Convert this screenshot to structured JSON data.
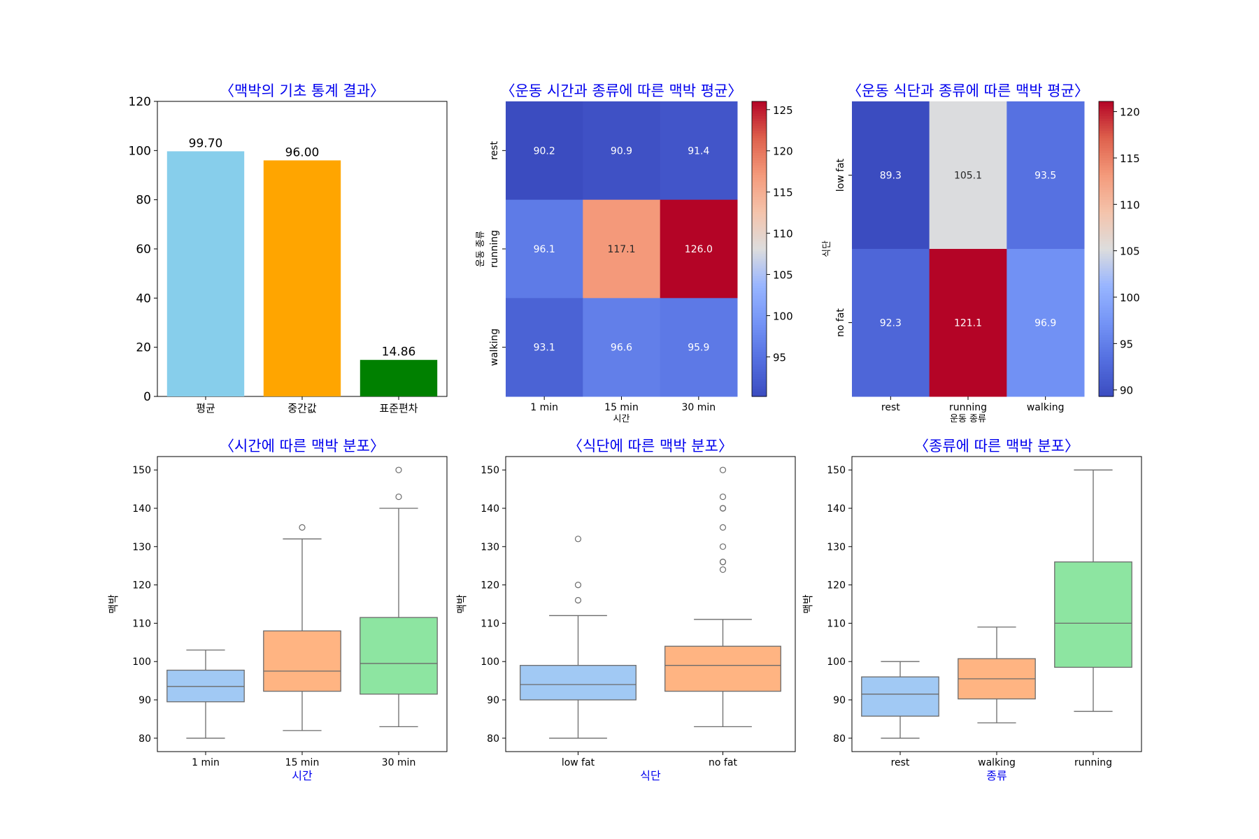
{
  "chart_data": [
    {
      "id": "bar-stats",
      "type": "bar",
      "title": "〈맥박의 기초 통계 결과〉",
      "categories": [
        "평균",
        "중간값",
        "표준편차"
      ],
      "values": [
        99.7,
        96.0,
        14.86
      ],
      "value_labels": [
        "99.70",
        "96.00",
        "14.86"
      ],
      "colors": [
        "#87ceeb",
        "#ffa500",
        "#008000"
      ],
      "ylim": [
        0,
        120
      ],
      "yticks": [
        0,
        20,
        40,
        60,
        80,
        100,
        120
      ],
      "xlabel": "",
      "ylabel": ""
    },
    {
      "id": "heatmap-time-kind",
      "type": "heatmap",
      "title": "〈운동 시간과 종류에 따른 맥박 평균〉",
      "xlabel": "시간",
      "ylabel": "운동 종류",
      "x": [
        "1 min",
        "15 min",
        "30 min"
      ],
      "y": [
        "rest",
        "running",
        "walking"
      ],
      "values": [
        [
          90.2,
          90.9,
          91.4
        ],
        [
          96.1,
          117.1,
          126.0
        ],
        [
          93.1,
          96.6,
          95.9
        ]
      ],
      "value_labels": [
        [
          "90.2",
          "90.9",
          "91.4"
        ],
        [
          "96.1",
          "117.1",
          "126.0"
        ],
        [
          "93.1",
          "96.6",
          "95.9"
        ]
      ],
      "colormap": "coolwarm",
      "vmin": 90.2,
      "vmax": 126.0,
      "colorbar_ticks": [
        95,
        100,
        105,
        110,
        115,
        120,
        125
      ]
    },
    {
      "id": "heatmap-diet-kind",
      "type": "heatmap",
      "title": "〈운동 식단과 종류에 따른 맥박 평균〉",
      "xlabel": "운동 종류",
      "ylabel": "식단",
      "x": [
        "rest",
        "running",
        "walking"
      ],
      "y": [
        "low fat",
        "no fat"
      ],
      "values": [
        [
          89.3,
          105.1,
          93.5
        ],
        [
          92.3,
          121.1,
          96.9
        ]
      ],
      "value_labels": [
        [
          "89.3",
          "105.1",
          "93.5"
        ],
        [
          "92.3",
          "121.1",
          "96.9"
        ]
      ],
      "colormap": "coolwarm",
      "vmin": 89.3,
      "vmax": 121.1,
      "colorbar_ticks": [
        90,
        95,
        100,
        105,
        110,
        115,
        120
      ]
    },
    {
      "id": "box-time",
      "type": "box",
      "title": "〈시간에 따른 맥박 분포〉",
      "xlabel": "시간",
      "ylabel": "맥박",
      "ylim": [
        76.5,
        153.5
      ],
      "yticks": [
        80,
        90,
        100,
        110,
        120,
        130,
        140,
        150
      ],
      "categories": [
        "1 min",
        "15 min",
        "30 min"
      ],
      "boxes": [
        {
          "whislo": 80,
          "q1": 89.5,
          "median": 93.5,
          "q3": 97.75,
          "whishi": 103,
          "fliers": []
        },
        {
          "whislo": 82,
          "q1": 92.25,
          "median": 97.5,
          "q3": 108,
          "whishi": 132,
          "fliers": [
            135
          ]
        },
        {
          "whislo": 83,
          "q1": 91.5,
          "median": 99.5,
          "q3": 111.5,
          "whishi": 140,
          "fliers": [
            143,
            150
          ]
        }
      ],
      "colors": [
        "#a1c9f4",
        "#ffb482",
        "#8de5a1"
      ]
    },
    {
      "id": "box-diet",
      "type": "box",
      "title": "〈식단에 따른 맥박 분포〉",
      "xlabel": "식단",
      "ylabel": "맥박",
      "ylim": [
        76.5,
        153.5
      ],
      "yticks": [
        80,
        90,
        100,
        110,
        120,
        130,
        140,
        150
      ],
      "categories": [
        "low fat",
        "no fat"
      ],
      "boxes": [
        {
          "whislo": 80,
          "q1": 90,
          "median": 94,
          "q3": 99,
          "whishi": 112,
          "fliers": [
            116,
            120,
            132
          ]
        },
        {
          "whislo": 83,
          "q1": 92.25,
          "median": 99,
          "q3": 104,
          "whishi": 111,
          "fliers": [
            124,
            126,
            126,
            130,
            135,
            140,
            140,
            143,
            150
          ]
        }
      ],
      "colors": [
        "#a1c9f4",
        "#ffb482"
      ]
    },
    {
      "id": "box-kind",
      "type": "box",
      "title": "〈종류에 따른 맥박 분포〉",
      "xlabel": "종류",
      "ylabel": "맥박",
      "ylim": [
        76.5,
        153.5
      ],
      "yticks": [
        80,
        90,
        100,
        110,
        120,
        130,
        140,
        150
      ],
      "categories": [
        "rest",
        "walking",
        "running"
      ],
      "boxes": [
        {
          "whislo": 80,
          "q1": 85.75,
          "median": 91.5,
          "q3": 96,
          "whishi": 100,
          "fliers": []
        },
        {
          "whislo": 84,
          "q1": 90.25,
          "median": 95.5,
          "q3": 100.75,
          "whishi": 109,
          "fliers": []
        },
        {
          "whislo": 87,
          "q1": 98.5,
          "median": 110,
          "q3": 126,
          "whishi": 150,
          "fliers": []
        }
      ],
      "colors": [
        "#a1c9f4",
        "#ffb482",
        "#8de5a1"
      ]
    }
  ]
}
